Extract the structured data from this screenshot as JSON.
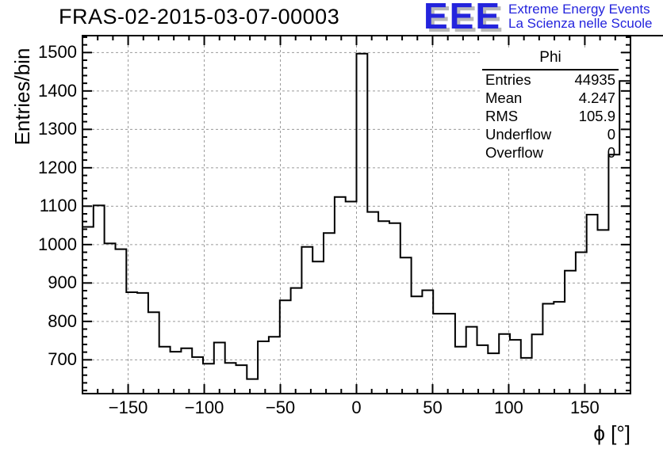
{
  "header": {
    "logo": {
      "acronym": "EEE",
      "line1": "Extreme Energy Events",
      "line2": "La Scienza nelle Scuole",
      "color": "#2424dd",
      "shadow_color": "#b9b9b9"
    }
  },
  "stats_box": {
    "title": "Phi",
    "rows": [
      {
        "label": "Entries",
        "value": "44935"
      },
      {
        "label": "Mean",
        "value": "4.247"
      },
      {
        "label": "RMS",
        "value": "105.9"
      },
      {
        "label": "Underflow",
        "value": "0"
      },
      {
        "label": "Overflow",
        "value": "0"
      }
    ]
  },
  "chart_data": {
    "type": "bar",
    "subtype": "step-histogram-outline",
    "title": "FRAS-02-2015-03-07-00003",
    "xlabel": "ϕ [°]",
    "ylabel": "Entries/bin",
    "bins": {
      "start_deg": -180,
      "end_deg": 180,
      "width_deg": 7.2,
      "count": 50
    },
    "values": [
      1046,
      1102,
      1003,
      988,
      876,
      874,
      824,
      734,
      721,
      730,
      707,
      690,
      745,
      692,
      686,
      650,
      748,
      760,
      855,
      887,
      994,
      956,
      1030,
      1124,
      1112,
      1497,
      1085,
      1061,
      1056,
      966,
      865,
      881,
      820,
      820,
      734,
      786,
      738,
      717,
      767,
      752,
      705,
      766,
      846,
      851,
      932,
      980,
      1078,
      1038,
      1234,
      1426
    ],
    "xlim": [
      -180,
      180
    ],
    "ylim": [
      612,
      1544
    ],
    "x_major_ticks": [
      -150,
      -100,
      -50,
      0,
      50,
      100,
      150
    ],
    "x_tick_labels": [
      "−150",
      "−100",
      "−50",
      "0",
      "50",
      "100",
      "150"
    ],
    "x_minor_step": 10,
    "y_major_ticks": [
      700,
      800,
      900,
      1000,
      1100,
      1200,
      1300,
      1400,
      1500
    ],
    "y_tick_labels": [
      "700",
      "800",
      "900",
      "1000",
      "1100",
      "1200",
      "1300",
      "1400",
      "1500"
    ],
    "y_minor_step": 20,
    "grid": {
      "show": true,
      "style": "dashed",
      "color": "#9a9a9a"
    },
    "legend_position": "none",
    "line_color": "#000000",
    "background": "#ffffff"
  }
}
